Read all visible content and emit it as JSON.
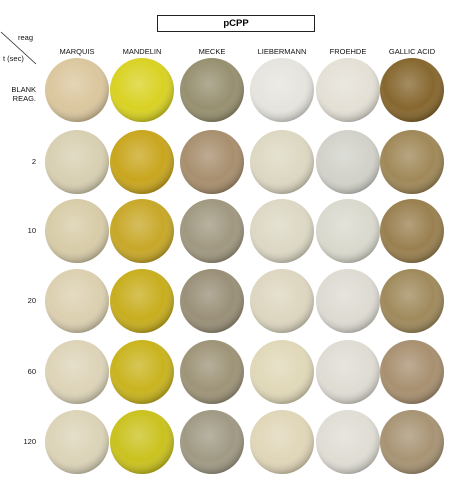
{
  "title": "pCPP",
  "corner": {
    "column_header": "reag",
    "row_header": "t (sec)"
  },
  "columns": [
    "MARQUIS",
    "MANDELIN",
    "MECKE",
    "LIEBERMANN",
    "FROEHDE",
    "GALLIC ACID"
  ],
  "rows": [
    "BLANK REAG.",
    "2",
    "10",
    "20",
    "60",
    "120"
  ]
}
